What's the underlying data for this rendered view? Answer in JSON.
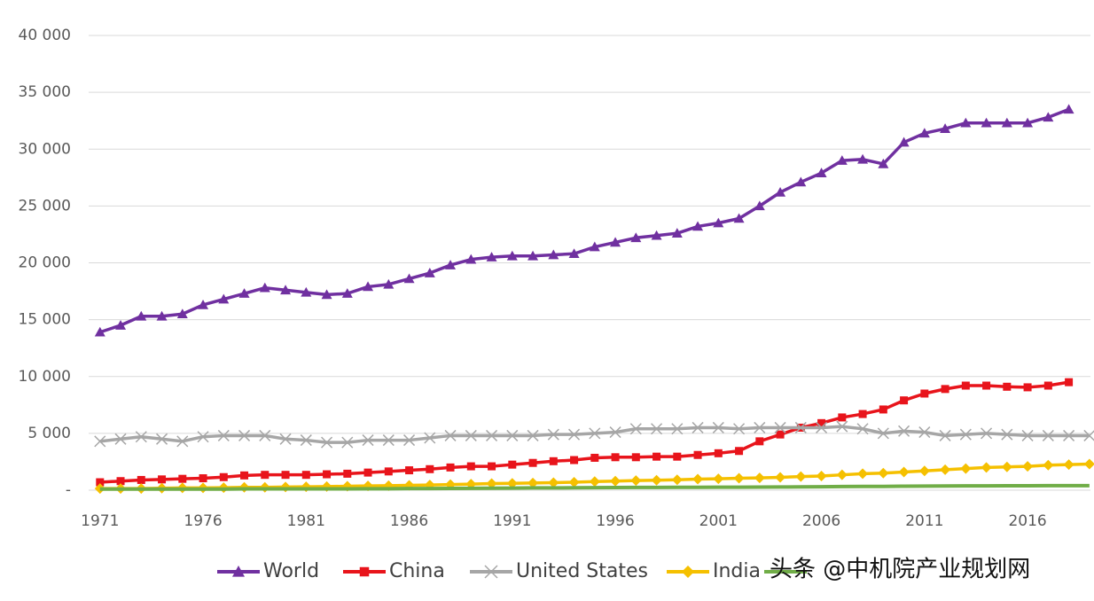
{
  "chart_data": {
    "type": "line",
    "x": [
      1971,
      1972,
      1973,
      1974,
      1975,
      1976,
      1977,
      1978,
      1979,
      1980,
      1981,
      1982,
      1983,
      1984,
      1985,
      1986,
      1987,
      1988,
      1989,
      1990,
      1991,
      1992,
      1993,
      1994,
      1995,
      1996,
      1997,
      1998,
      1999,
      2000,
      2001,
      2002,
      2003,
      2004,
      2005,
      2006,
      2007,
      2008,
      2009,
      2010,
      2011,
      2012,
      2013,
      2014,
      2015,
      2016,
      2017,
      2018,
      2019
    ],
    "xlim": [
      1970.45,
      2019.05
    ],
    "xticks": [
      1971,
      1976,
      1981,
      1986,
      1991,
      1996,
      2001,
      2006,
      2011,
      2016
    ],
    "ylim": [
      0,
      40000
    ],
    "yticks": [
      {
        "value": 0,
        "label": "-"
      },
      {
        "value": 5000,
        "label": "5 000"
      },
      {
        "value": 10000,
        "label": "10 000"
      },
      {
        "value": 15000,
        "label": "15 000"
      },
      {
        "value": 20000,
        "label": "20 000"
      },
      {
        "value": 25000,
        "label": "25 000"
      },
      {
        "value": 30000,
        "label": "30 000"
      },
      {
        "value": 35000,
        "label": "35 000"
      },
      {
        "value": 40000,
        "label": "40 000"
      }
    ],
    "grid": true,
    "legend": "bottom",
    "series": [
      {
        "name": "World",
        "color": "#7030a0",
        "marker": "triangle",
        "values": [
          13900,
          14500,
          15300,
          15300,
          15500,
          16300,
          16800,
          17300,
          17800,
          17600,
          17400,
          17200,
          17300,
          17900,
          18100,
          18600,
          19100,
          19800,
          20300,
          20500,
          20600,
          20600,
          20700,
          20800,
          21400,
          21800,
          22200,
          22400,
          22600,
          23200,
          23500,
          23900,
          25000,
          26200,
          27100,
          27900,
          29000,
          29100,
          28700,
          30600,
          31400,
          31800,
          32300,
          32300,
          32300,
          32300,
          32800,
          33500,
          null
        ]
      },
      {
        "name": "China",
        "color": "#e8141b",
        "marker": "square",
        "values": [
          700,
          800,
          900,
          950,
          1000,
          1050,
          1150,
          1300,
          1350,
          1350,
          1350,
          1400,
          1450,
          1550,
          1650,
          1750,
          1850,
          2000,
          2100,
          2100,
          2250,
          2400,
          2550,
          2650,
          2850,
          2900,
          2900,
          2950,
          2950,
          3100,
          3250,
          3450,
          4300,
          4900,
          5500,
          5900,
          6400,
          6700,
          7100,
          7900,
          8500,
          8900,
          9200,
          9200,
          9100,
          9050,
          9200,
          9500,
          null
        ]
      },
      {
        "name": "United States",
        "color": "#a6a6a6",
        "marker": "x",
        "values": [
          4300,
          4500,
          4700,
          4500,
          4300,
          4700,
          4800,
          4800,
          4800,
          4500,
          4400,
          4200,
          4200,
          4400,
          4400,
          4400,
          4600,
          4800,
          4800,
          4800,
          4800,
          4800,
          4900,
          4900,
          5000,
          5100,
          5400,
          5400,
          5400,
          5500,
          5500,
          5400,
          5500,
          5500,
          5500,
          5500,
          5600,
          5400,
          5000,
          5200,
          5100,
          4800,
          4900,
          5000,
          4900,
          4800,
          4800,
          4800,
          4800
        ]
      },
      {
        "name": "India",
        "color": "#f5c000",
        "marker": "diamond",
        "values": [
          150,
          150,
          150,
          180,
          200,
          200,
          220,
          250,
          250,
          280,
          300,
          320,
          350,
          380,
          400,
          430,
          460,
          500,
          540,
          580,
          600,
          630,
          660,
          700,
          760,
          800,
          850,
          880,
          920,
          970,
          1000,
          1050,
          1080,
          1130,
          1200,
          1250,
          1350,
          1450,
          1500,
          1600,
          1700,
          1800,
          1900,
          2000,
          2050,
          2100,
          2200,
          2250,
          2300
        ]
      },
      {
        "color": "#70ad47",
        "marker": "none",
        "values": [
          100,
          100,
          100,
          100,
          100,
          100,
          100,
          120,
          120,
          120,
          120,
          120,
          120,
          130,
          130,
          150,
          150,
          160,
          170,
          180,
          190,
          200,
          200,
          210,
          220,
          230,
          240,
          240,
          250,
          250,
          260,
          260,
          270,
          280,
          290,
          300,
          320,
          330,
          330,
          350,
          360,
          370,
          380,
          380,
          390,
          390,
          400,
          400,
          400
        ]
      }
    ]
  },
  "watermark": "头条 @中机院产业规划网"
}
